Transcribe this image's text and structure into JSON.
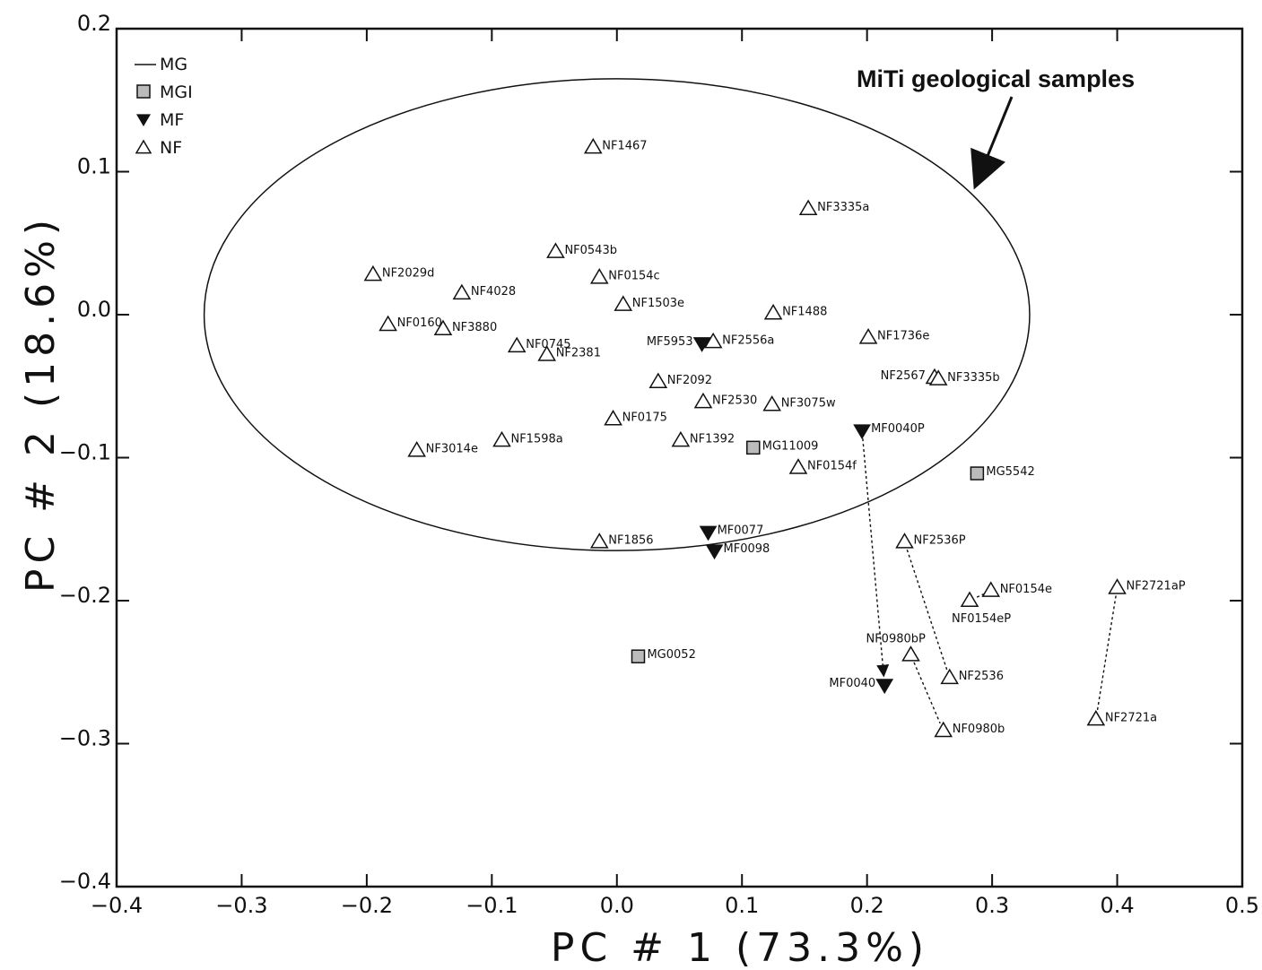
{
  "chart_data": {
    "type": "scatter",
    "xlabel": "PC # 1 (73.3%)",
    "ylabel": "PC # 2 (18.6%)",
    "xlim": [
      -0.4,
      0.5
    ],
    "ylim": [
      -0.4,
      0.2
    ],
    "xticks": [
      "−0.4",
      "−0.3",
      "−0.2",
      "−0.1",
      "0.0",
      "0.1",
      "0.2",
      "0.3",
      "0.4",
      "0.5"
    ],
    "yticks": [
      "−0.4",
      "−0.3",
      "−0.2",
      "−0.1",
      "0.0",
      "0.1",
      "0.2"
    ],
    "xtick_values": [
      -0.4,
      -0.3,
      -0.2,
      -0.1,
      0.0,
      0.1,
      0.2,
      0.3,
      0.4,
      0.5
    ],
    "ytick_values": [
      -0.4,
      -0.3,
      -0.2,
      -0.1,
      0.0,
      0.1,
      0.2
    ],
    "legend": {
      "placement": "top-left",
      "entries": [
        {
          "name": "MG",
          "marker": "line"
        },
        {
          "name": "MGI",
          "marker": "square"
        },
        {
          "name": "MF",
          "marker": "triangle-down"
        },
        {
          "name": "NF",
          "marker": "triangle-up"
        }
      ]
    },
    "annotation": "MiTi geological samples",
    "ellipse": {
      "cx": 0.0,
      "cy": 0.0,
      "rx": 0.33,
      "ry": 0.165
    },
    "series": [
      {
        "name": "MGI",
        "points": [
          {
            "label": "MG11009",
            "x": 0.109,
            "y": -0.093,
            "label_side": "right"
          },
          {
            "label": "MG5542",
            "x": 0.288,
            "y": -0.111,
            "label_side": "right"
          },
          {
            "label": "MG0052",
            "x": 0.017,
            "y": -0.239,
            "label_side": "right"
          }
        ]
      },
      {
        "name": "MF",
        "points": [
          {
            "label": "MF5953",
            "x": 0.068,
            "y": -0.02,
            "label_side": "left"
          },
          {
            "label": "MF0040P",
            "x": 0.196,
            "y": -0.081,
            "label_side": "right"
          },
          {
            "label": "MF0077",
            "x": 0.073,
            "y": -0.152,
            "label_side": "right"
          },
          {
            "label": "MF0098",
            "x": 0.078,
            "y": -0.165,
            "label_side": "right"
          },
          {
            "label": "MF0040",
            "x": 0.214,
            "y": -0.259,
            "label_side": "left"
          }
        ]
      },
      {
        "name": "NF",
        "points": [
          {
            "label": "NF1467",
            "x": -0.019,
            "y": 0.117,
            "label_side": "right"
          },
          {
            "label": "NF3335a",
            "x": 0.153,
            "y": 0.074,
            "label_side": "right"
          },
          {
            "label": "NF0543b",
            "x": -0.049,
            "y": 0.044,
            "label_side": "right"
          },
          {
            "label": "NF0154c",
            "x": -0.014,
            "y": 0.026,
            "label_side": "right"
          },
          {
            "label": "NF2029d",
            "x": -0.195,
            "y": 0.028,
            "label_side": "right"
          },
          {
            "label": "NF4028",
            "x": -0.124,
            "y": 0.015,
            "label_side": "right"
          },
          {
            "label": "NF1503e",
            "x": 0.005,
            "y": 0.007,
            "label_side": "right"
          },
          {
            "label": "NF1488",
            "x": 0.125,
            "y": 0.001,
            "label_side": "right"
          },
          {
            "label": "NF0160",
            "x": -0.183,
            "y": -0.007,
            "label_side": "right"
          },
          {
            "label": "NF3880",
            "x": -0.139,
            "y": -0.01,
            "label_side": "right"
          },
          {
            "label": "NF2556a",
            "x": 0.077,
            "y": -0.019,
            "label_side": "right"
          },
          {
            "label": "NF1736e",
            "x": 0.201,
            "y": -0.016,
            "label_side": "right"
          },
          {
            "label": "NF0745",
            "x": -0.08,
            "y": -0.022,
            "label_side": "right"
          },
          {
            "label": "NF2381",
            "x": -0.056,
            "y": -0.028,
            "label_side": "right"
          },
          {
            "label": "NF2567",
            "x": 0.254,
            "y": -0.044,
            "label_side": "left"
          },
          {
            "label": "NF3335b",
            "x": 0.257,
            "y": -0.045,
            "label_side": "right"
          },
          {
            "label": "NF2092",
            "x": 0.033,
            "y": -0.047,
            "label_side": "right"
          },
          {
            "label": "NF2530",
            "x": 0.069,
            "y": -0.061,
            "label_side": "right"
          },
          {
            "label": "NF3075w",
            "x": 0.124,
            "y": -0.063,
            "label_side": "right"
          },
          {
            "label": "NF0175",
            "x": -0.003,
            "y": -0.073,
            "label_side": "right"
          },
          {
            "label": "NF1598a",
            "x": -0.092,
            "y": -0.088,
            "label_side": "right"
          },
          {
            "label": "NF1392",
            "x": 0.051,
            "y": -0.088,
            "label_side": "right"
          },
          {
            "label": "NF3014e",
            "x": -0.16,
            "y": -0.095,
            "label_side": "right"
          },
          {
            "label": "NF0154f",
            "x": 0.145,
            "y": -0.107,
            "label_side": "right"
          },
          {
            "label": "NF1856",
            "x": -0.014,
            "y": -0.159,
            "label_side": "right"
          },
          {
            "label": "NF2536P",
            "x": 0.23,
            "y": -0.159,
            "label_side": "right"
          },
          {
            "label": "NF0154e",
            "x": 0.299,
            "y": -0.193,
            "label_side": "right"
          },
          {
            "label": "NF0154eP",
            "x": 0.282,
            "y": -0.2,
            "label_side": "below"
          },
          {
            "label": "NF2721aP",
            "x": 0.4,
            "y": -0.191,
            "label_side": "right"
          },
          {
            "label": "NF0980bP",
            "x": 0.235,
            "y": -0.238,
            "label_side": "above"
          },
          {
            "label": "NF2536",
            "x": 0.266,
            "y": -0.254,
            "label_side": "right"
          },
          {
            "label": "NF2721a",
            "x": 0.383,
            "y": -0.283,
            "label_side": "right"
          },
          {
            "label": "NF0980b",
            "x": 0.261,
            "y": -0.291,
            "label_side": "right"
          }
        ]
      }
    ],
    "connections": [
      {
        "from": "MF0040P",
        "to": "MF0040",
        "arrow": true
      },
      {
        "from": "NF2536P",
        "to": "NF2536",
        "arrow": false
      },
      {
        "from": "NF0980bP",
        "to": "NF0980b",
        "arrow": false
      },
      {
        "from": "NF2721aP",
        "to": "NF2721a",
        "arrow": false
      },
      {
        "from": "NF0154eP",
        "to": "NF0154e",
        "arrow": false
      }
    ]
  }
}
